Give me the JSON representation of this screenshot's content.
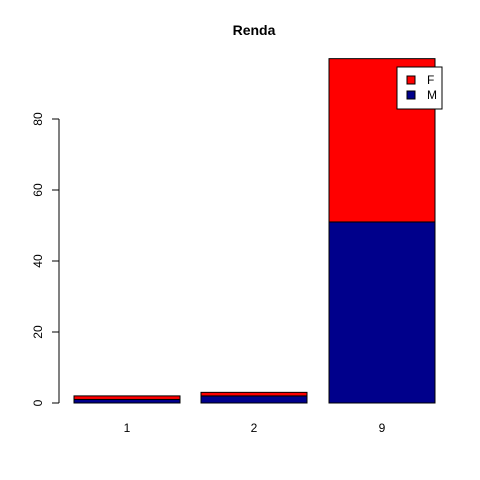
{
  "chart_data": {
    "type": "bar",
    "stacked": true,
    "title": "Renda",
    "xlabel": "",
    "ylabel": "",
    "categories": [
      "1",
      "2",
      "9"
    ],
    "series": [
      {
        "name": "M",
        "color": "#00008B",
        "values": [
          1,
          2,
          51
        ]
      },
      {
        "name": "F",
        "color": "#FF0000",
        "values": [
          1,
          1,
          46
        ]
      }
    ],
    "y_ticks": [
      "0",
      "20",
      "40",
      "60",
      "80"
    ],
    "ylim": [
      0,
      97
    ],
    "grid": false,
    "legend": {
      "placement": "top-right",
      "entries": [
        "F",
        "M"
      ]
    }
  }
}
